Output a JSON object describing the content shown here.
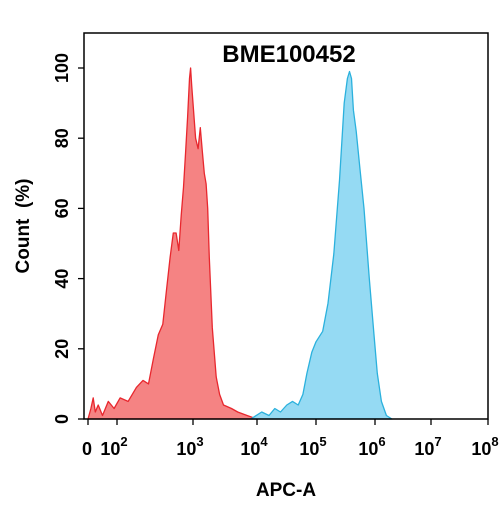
{
  "chart_data": {
    "type": "area",
    "title": "BME100452",
    "xlabel": "APC-A",
    "ylabel": "Count  (%)",
    "x_scale": "log (biexponential)",
    "xlim": [
      0,
      100000000
    ],
    "ylim": [
      0,
      110
    ],
    "x_tick_labels": [
      {
        "value": 0,
        "base": "0",
        "exp": ""
      },
      {
        "value": 100,
        "base": "10",
        "exp": "2"
      },
      {
        "value": 1000,
        "base": "10",
        "exp": "3"
      },
      {
        "value": 10000,
        "base": "10",
        "exp": "4"
      },
      {
        "value": 100000,
        "base": "10",
        "exp": "5"
      },
      {
        "value": 1000000,
        "base": "10",
        "exp": "6"
      },
      {
        "value": 10000000,
        "base": "10",
        "exp": "7"
      },
      {
        "value": 100000000,
        "base": "10",
        "exp": "8"
      }
    ],
    "y_ticks": [
      "0",
      "20",
      "40",
      "60",
      "80",
      "100"
    ],
    "grid": false,
    "legend": "none",
    "series": [
      {
        "color": "#f47c7c",
        "stroke": "#e8272e",
        "points": [
          [
            0,
            0
          ],
          [
            10,
            3
          ],
          [
            18,
            6
          ],
          [
            25,
            2
          ],
          [
            35,
            4
          ],
          [
            50,
            1
          ],
          [
            70,
            5
          ],
          [
            90,
            3
          ],
          [
            110,
            6
          ],
          [
            140,
            5
          ],
          [
            180,
            9
          ],
          [
            220,
            11
          ],
          [
            260,
            10
          ],
          [
            300,
            17
          ],
          [
            350,
            24
          ],
          [
            400,
            27
          ],
          [
            450,
            37
          ],
          [
            500,
            46
          ],
          [
            550,
            53
          ],
          [
            600,
            53
          ],
          [
            650,
            48
          ],
          [
            700,
            58
          ],
          [
            750,
            66
          ],
          [
            800,
            76
          ],
          [
            850,
            86
          ],
          [
            900,
            97
          ],
          [
            930,
            100
          ],
          [
            960,
            95
          ],
          [
            1000,
            90
          ],
          [
            1100,
            80
          ],
          [
            1200,
            77
          ],
          [
            1300,
            83
          ],
          [
            1400,
            76
          ],
          [
            1500,
            70
          ],
          [
            1600,
            67
          ],
          [
            1700,
            60
          ],
          [
            1800,
            46
          ],
          [
            2000,
            26
          ],
          [
            2300,
            12
          ],
          [
            2600,
            7
          ],
          [
            3000,
            4
          ],
          [
            4000,
            3
          ],
          [
            5000,
            2
          ],
          [
            7000,
            1
          ],
          [
            10000,
            0
          ]
        ]
      },
      {
        "color": "#8fd8f2",
        "stroke": "#2bb1dd",
        "points": [
          [
            8000,
            0
          ],
          [
            12000,
            2
          ],
          [
            16000,
            1
          ],
          [
            20000,
            3
          ],
          [
            25000,
            2
          ],
          [
            32000,
            4
          ],
          [
            40000,
            5
          ],
          [
            50000,
            4
          ],
          [
            60000,
            7
          ],
          [
            70000,
            13
          ],
          [
            85000,
            19
          ],
          [
            100000,
            22
          ],
          [
            130000,
            25
          ],
          [
            160000,
            33
          ],
          [
            200000,
            47
          ],
          [
            250000,
            68
          ],
          [
            300000,
            90
          ],
          [
            340000,
            97
          ],
          [
            370000,
            99
          ],
          [
            400000,
            97
          ],
          [
            430000,
            88
          ],
          [
            480000,
            82
          ],
          [
            550000,
            72
          ],
          [
            650000,
            60
          ],
          [
            800000,
            40
          ],
          [
            950000,
            25
          ],
          [
            1100000,
            13
          ],
          [
            1300000,
            5
          ],
          [
            1600000,
            1
          ],
          [
            2000000,
            0
          ]
        ]
      }
    ]
  }
}
